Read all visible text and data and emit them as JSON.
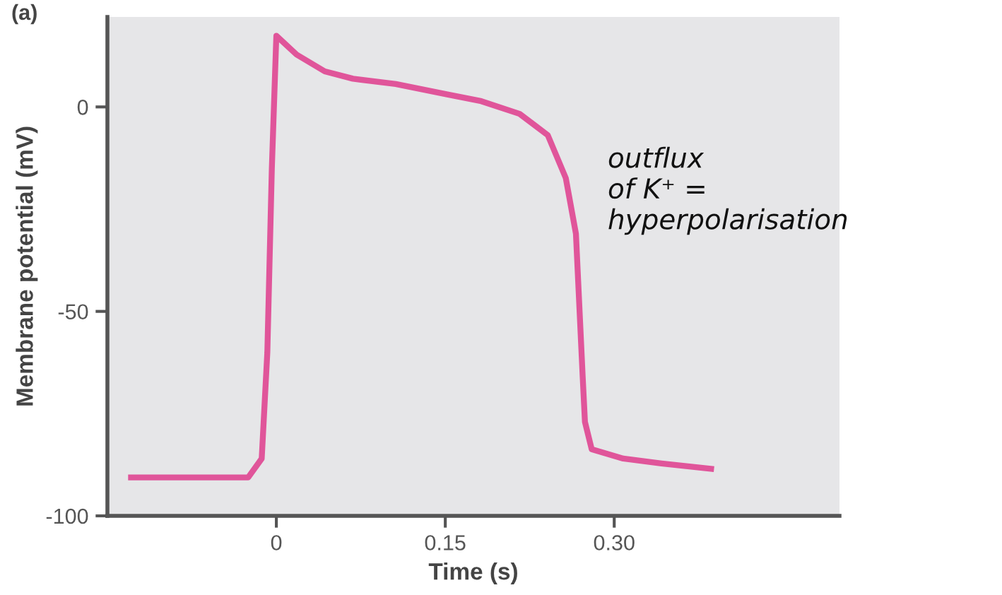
{
  "chart_data": {
    "type": "line",
    "xlabel": "Time (s)",
    "ylabel": "Membrane potential (mV)",
    "x": [
      -0.129,
      -0.025,
      -0.013,
      -0.008,
      -0.004,
      0,
      0.018,
      0.043,
      0.068,
      0.106,
      0.151,
      0.182,
      0.216,
      0.241,
      0.257,
      0.266,
      0.272,
      0.274,
      0.28,
      0.308,
      0.342,
      0.386
    ],
    "series": [
      {
        "color": "#e0559a",
        "values": [
          -90.6,
          -90.6,
          -86,
          -60,
          -15,
          17.4,
          12.8,
          8.7,
          6.9,
          5.6,
          3.1,
          1.4,
          -1.7,
          -6.9,
          -17.4,
          -31,
          -66,
          -77,
          -83.7,
          -86,
          -87.2,
          -88.5
        ]
      }
    ],
    "xlim": [
      -0.15,
      0.5
    ],
    "ylim": [
      -100,
      22
    ],
    "xticks": [
      0,
      0.15,
      {
        "value": 0.3,
        "label": "0.30"
      }
    ],
    "yticks": [
      -100,
      -50,
      0
    ],
    "grid": false,
    "legend": false,
    "marker": "none",
    "line_style": "solid",
    "annotations": [
      "(a)",
      "outflux\nof K⁺ =\nhyperpolarisation"
    ]
  }
}
